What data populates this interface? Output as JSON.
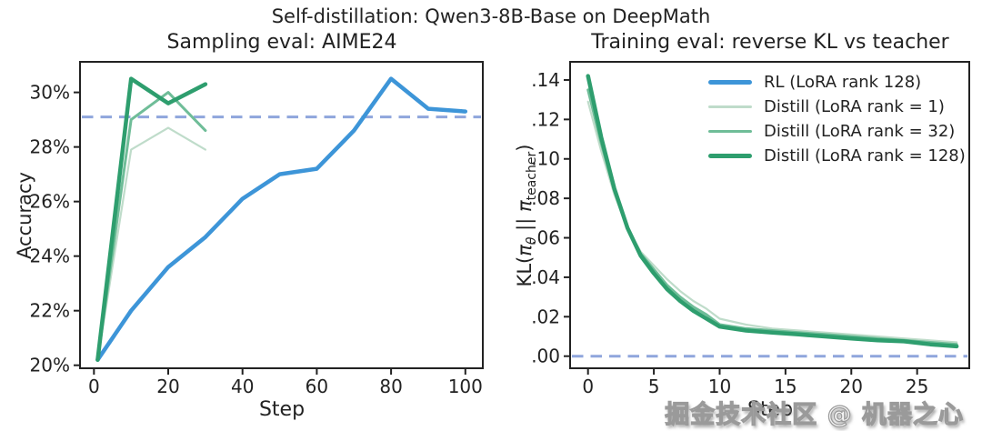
{
  "figure_title": "Self-distillation: Qwen3-8B-Base on DeepMath",
  "watermark": "掘金技术社区 @ 机器之心",
  "colors": {
    "rl_blue": "#3d95d8",
    "distill_rank1_green": "#bfdcca",
    "distill_rank32_green": "#6fbd98",
    "distill_rank128_green": "#2e9e6e",
    "baseline_dashed_blue": "#8fa6dc",
    "spine": "#222222",
    "text": "#222222"
  },
  "legend": {
    "location": "upper right of right plot",
    "entries": [
      {
        "label": "RL (LoRA rank 128)",
        "color": "#3d95d8",
        "width": 4.5
      },
      {
        "label": "Distill (LoRA rank = 1)",
        "color": "#bfdcca",
        "width": 2.2
      },
      {
        "label": "Distill (LoRA rank = 32)",
        "color": "#6fbd98",
        "width": 3
      },
      {
        "label": "Distill (LoRA rank = 128)",
        "color": "#2e9e6e",
        "width": 4.5
      }
    ]
  },
  "chart_data": [
    {
      "type": "line",
      "title": "Sampling eval: AIME24",
      "xlabel": "Step",
      "ylabel": "Accuracy",
      "xlim": [
        -3.75,
        104.7
      ],
      "ylim": [
        19.89,
        31.12
      ],
      "xticks": [
        0,
        20,
        40,
        60,
        80,
        100
      ],
      "xtick_labels": [
        "0",
        "20",
        "40",
        "60",
        "80",
        "100"
      ],
      "yticks": [
        20,
        22,
        24,
        26,
        28,
        30
      ],
      "ytick_labels": [
        "20%",
        "22%",
        "24%",
        "26%",
        "28%",
        "30%"
      ],
      "grid": false,
      "baseline": 29.1,
      "baseline_style": "dashed horizontal reference line",
      "series": [
        {
          "name": "RL (LoRA rank 128)",
          "color": "#3d95d8",
          "width": 4.5,
          "x": [
            1,
            10,
            20,
            30,
            40,
            50,
            60,
            70,
            80,
            90,
            100
          ],
          "y": [
            20.2,
            22.0,
            23.6,
            24.7,
            26.1,
            27.0,
            27.2,
            28.6,
            30.5,
            29.4,
            29.3
          ]
        },
        {
          "name": "Distill (LoRA rank = 1)",
          "color": "#bfdcca",
          "width": 2.2,
          "x": [
            1,
            10,
            20,
            30
          ],
          "y": [
            20.2,
            27.9,
            28.7,
            27.9
          ]
        },
        {
          "name": "Distill (LoRA rank = 32)",
          "color": "#6fbd98",
          "width": 3,
          "x": [
            1,
            10,
            20,
            30
          ],
          "y": [
            20.2,
            29.0,
            30.0,
            28.6
          ]
        },
        {
          "name": "Distill (LoRA rank = 128)",
          "color": "#2e9e6e",
          "width": 4.5,
          "x": [
            1,
            10,
            20,
            30
          ],
          "y": [
            20.2,
            30.5,
            29.6,
            30.3
          ]
        }
      ]
    },
    {
      "type": "line",
      "title": "Training eval: reverse KL vs teacher",
      "xlabel": "Step",
      "ylabel": "KL(πθ || πteacher)",
      "ylabel_parts": {
        "p1": "KL(",
        "pi1": "π",
        "s1": "θ",
        "p2": " || ",
        "pi2": "π",
        "s2": "teacher",
        "p3": ")"
      },
      "xlim": [
        -1.36,
        28.96
      ],
      "ylim": [
        -0.00613,
        0.1492
      ],
      "xticks": [
        0,
        5,
        10,
        15,
        20,
        25
      ],
      "xtick_labels": [
        "0",
        "5",
        "10",
        "15",
        "20",
        "25"
      ],
      "yticks": [
        0.0,
        0.02,
        0.04,
        0.06,
        0.08,
        0.1,
        0.12,
        0.14
      ],
      "ytick_labels": [
        ".00",
        ".02",
        ".04",
        ".06",
        ".08",
        ".10",
        ".12",
        ".14"
      ],
      "grid": false,
      "baseline": 0.0,
      "baseline_style": "dashed horizontal reference line",
      "series": [
        {
          "name": "Distill (LoRA rank = 1)",
          "color": "#bfdcca",
          "width": 2.2,
          "x": [
            0,
            1,
            2,
            3,
            4,
            5,
            6,
            7,
            8,
            9,
            10,
            12,
            14,
            16,
            18,
            20,
            22,
            24,
            26,
            28
          ],
          "y": [
            0.129,
            0.104,
            0.082,
            0.065,
            0.053,
            0.046,
            0.039,
            0.033,
            0.028,
            0.024,
            0.019,
            0.016,
            0.014,
            0.013,
            0.012,
            0.011,
            0.01,
            0.009,
            0.008,
            0.007
          ]
        },
        {
          "name": "Distill (LoRA rank = 32)",
          "color": "#6fbd98",
          "width": 3,
          "x": [
            0,
            1,
            2,
            3,
            4,
            5,
            6,
            7,
            8,
            9,
            10,
            12,
            14,
            16,
            18,
            20,
            22,
            24,
            26,
            28
          ],
          "y": [
            0.135,
            0.108,
            0.084,
            0.065,
            0.052,
            0.044,
            0.036,
            0.03,
            0.025,
            0.021,
            0.016,
            0.014,
            0.013,
            0.012,
            0.011,
            0.01,
            0.009,
            0.008,
            0.007,
            0.006
          ]
        },
        {
          "name": "Distill (LoRA rank = 128)",
          "color": "#2e9e6e",
          "width": 4.5,
          "x": [
            0,
            1,
            2,
            3,
            4,
            5,
            6,
            7,
            8,
            9,
            10,
            12,
            14,
            16,
            18,
            20,
            22,
            24,
            26,
            28
          ],
          "y": [
            0.142,
            0.111,
            0.085,
            0.065,
            0.051,
            0.042,
            0.034,
            0.028,
            0.023,
            0.019,
            0.015,
            0.013,
            0.012,
            0.011,
            0.01,
            0.009,
            0.008,
            0.0075,
            0.006,
            0.005
          ]
        }
      ]
    }
  ]
}
